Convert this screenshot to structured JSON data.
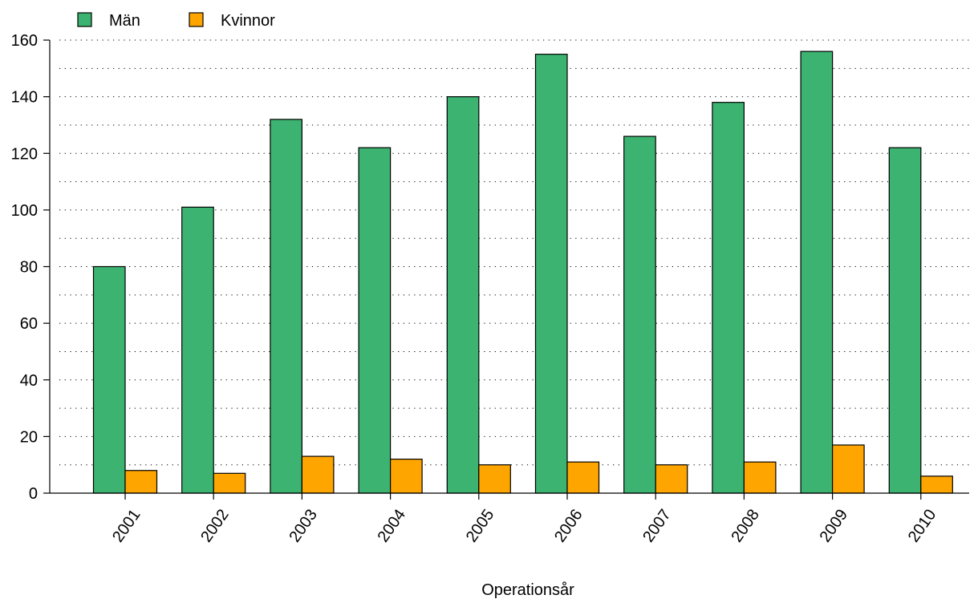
{
  "chart_data": {
    "type": "bar",
    "title": "",
    "xlabel": "Operationsår",
    "ylabel": "",
    "categories": [
      "2001",
      "2002",
      "2003",
      "2004",
      "2005",
      "2006",
      "2007",
      "2008",
      "2009",
      "2010"
    ],
    "series": [
      {
        "name": "Män",
        "color": "#3cb371",
        "values": [
          80,
          101,
          132,
          122,
          140,
          155,
          126,
          138,
          156,
          122
        ]
      },
      {
        "name": "Kvinnor",
        "color": "#ffa500",
        "values": [
          8,
          7,
          13,
          12,
          10,
          11,
          10,
          11,
          17,
          6
        ]
      }
    ],
    "ylim": [
      0,
      160
    ],
    "yticks": [
      0,
      20,
      40,
      60,
      80,
      100,
      120,
      140,
      160
    ],
    "grid": "dotted horizontal every 10",
    "legend_position": "top-left"
  }
}
